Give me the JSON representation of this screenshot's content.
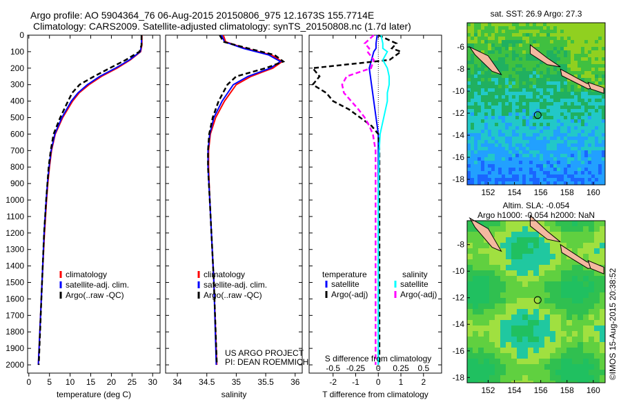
{
  "header": {
    "line1": "Argo profile: AO 5904364_76 06-Aug-2015 20150806_975 12.1673S 155.7714E",
    "line2": "Climatology: CARS2009. Satellite-adjusted climatology: synTS_20150808.nc (1.7d later)"
  },
  "chart_data": [
    {
      "type": "line",
      "xlabel": "temperature (deg C)",
      "ylabel": "",
      "xlim": [
        -0.3,
        31.8
      ],
      "ylim": [
        2050,
        0
      ],
      "xticks": [
        0,
        5,
        10,
        15,
        20,
        25,
        30
      ],
      "yticks": [
        0,
        100,
        200,
        300,
        400,
        500,
        600,
        700,
        800,
        900,
        1000,
        1100,
        1200,
        1300,
        1400,
        1500,
        1600,
        1700,
        1800,
        1900,
        2000
      ],
      "legend": [
        "climatology",
        "satellite-adj. clim.",
        "Argo(..raw -QC)"
      ],
      "depth": [
        0,
        60,
        100,
        150,
        200,
        250,
        300,
        350,
        400,
        500,
        600,
        700,
        800,
        900,
        1000,
        1200,
        1500,
        2000
      ],
      "series": [
        {
          "name": "climatology",
          "color": "#ff0000",
          "values": [
            27.4,
            27.4,
            27.1,
            24.6,
            21.4,
            17.6,
            14.6,
            12.2,
            10.6,
            8.2,
            6.4,
            5.5,
            5.0,
            4.6,
            4.3,
            3.8,
            3.2,
            2.3
          ]
        },
        {
          "name": "satellite-adj. clim.",
          "color": "#0000ff",
          "values": [
            27.3,
            27.3,
            27.0,
            24.4,
            21.0,
            17.2,
            14.2,
            11.9,
            10.3,
            8.0,
            6.3,
            5.4,
            4.9,
            4.5,
            4.2,
            3.7,
            3.2,
            2.3
          ]
        },
        {
          "name": "Argo(..raw -QC)",
          "color": "#000000",
          "dash": true,
          "values": [
            27.3,
            27.3,
            26.8,
            23.5,
            19.6,
            15.8,
            12.3,
            10.5,
            9.5,
            7.6,
            6.0,
            5.3,
            4.8,
            4.5,
            4.2,
            3.7,
            3.2,
            2.4
          ]
        }
      ]
    },
    {
      "type": "line",
      "xlabel": "salinity",
      "xlim": [
        33.8,
        36.12
      ],
      "ylim": [
        2050,
        0
      ],
      "xticks": [
        34,
        34.5,
        35,
        35.5,
        36
      ],
      "legend": [
        "climatology",
        "satellite-adj. clim.",
        "Argo(..raw -QC)"
      ],
      "annotation": [
        "US ARGO PROJECT",
        "PI: DEAN ROEMMICH"
      ],
      "depth": [
        0,
        40,
        80,
        120,
        160,
        200,
        250,
        300,
        400,
        500,
        600,
        700,
        800,
        1000,
        1500,
        2000
      ],
      "series": [
        {
          "name": "climatology",
          "color": "#ff0000",
          "values": [
            34.78,
            34.82,
            35.15,
            35.6,
            35.78,
            35.62,
            35.25,
            35.0,
            34.8,
            34.65,
            34.56,
            34.53,
            34.53,
            34.55,
            34.62,
            34.67
          ]
        },
        {
          "name": "satellite-adj. clim.",
          "color": "#0000ff",
          "values": [
            34.75,
            34.8,
            35.12,
            35.55,
            35.75,
            35.58,
            35.2,
            34.95,
            34.76,
            34.62,
            34.55,
            34.52,
            34.52,
            34.55,
            34.62,
            34.66
          ]
        },
        {
          "name": "Argo(..raw -QC)",
          "color": "#000000",
          "dash": true,
          "values": [
            34.72,
            34.78,
            35.2,
            35.65,
            35.8,
            35.5,
            35.0,
            34.85,
            34.7,
            34.6,
            34.54,
            34.52,
            34.52,
            34.55,
            34.62,
            34.67
          ]
        }
      ]
    },
    {
      "type": "line",
      "xlabel": "T difference from climatology",
      "x2label": "S difference from climatology",
      "xlim": [
        -3.06,
        2.8
      ],
      "ylim": [
        2050,
        0
      ],
      "xticks": [
        -2,
        -1,
        0,
        1,
        2
      ],
      "x2ticks": [
        "-0.5",
        "-0.25",
        "0",
        "0.25",
        "0.5"
      ],
      "x2values": [
        -0.5,
        -0.25,
        0,
        0.25,
        0.5
      ],
      "legend_headers": [
        "temperature",
        "salinity"
      ],
      "legend": [
        "satellite",
        "Argo(-adj)",
        "satellite",
        "Argo(-adj)"
      ],
      "depth": [
        0,
        50,
        80,
        100,
        150,
        200,
        250,
        300,
        350,
        400,
        450,
        500,
        550,
        600,
        700,
        1000,
        1500,
        2000
      ],
      "series": [
        {
          "name": "temperature satellite",
          "color": "#0000ff",
          "values": [
            -0.05,
            -0.1,
            -0.1,
            -0.2,
            -0.3,
            -0.4,
            -0.35,
            -0.3,
            -0.25,
            -0.2,
            -0.15,
            -0.1,
            -0.05,
            0,
            0,
            0,
            0,
            0
          ]
        },
        {
          "name": "temperature Argo(-adj)",
          "color": "#000000",
          "dash": true,
          "values": [
            0,
            0.8,
            0.6,
            1.0,
            0.5,
            -2.9,
            -2.6,
            -2.9,
            -2.3,
            -2.0,
            -1.3,
            -0.8,
            -0.3,
            0,
            0.05,
            0.05,
            0.05,
            0.05
          ]
        },
        {
          "name": "salinity satellite",
          "color": "#00ffff",
          "values": [
            0.03,
            0.05,
            0.05,
            0.1,
            0.05,
            0.1,
            0.12,
            0.12,
            0.1,
            0.1,
            0.08,
            0.06,
            0.04,
            0.02,
            0.01,
            0.0,
            0.0,
            0.0
          ]
        },
        {
          "name": "salinity Argo(-adj)",
          "color": "#ff00ff",
          "dash": true,
          "values": [
            -0.05,
            -0.15,
            -0.1,
            -0.12,
            -0.05,
            -0.08,
            -0.35,
            -0.4,
            -0.38,
            -0.3,
            -0.22,
            -0.15,
            -0.1,
            -0.06,
            -0.03,
            -0.03,
            -0.03,
            -0.03
          ]
        }
      ]
    },
    {
      "type": "heatmap",
      "title": "sat. SST: 26.9 Argo: 27.3",
      "xticks": [
        152,
        154,
        156,
        158,
        160
      ],
      "yticks": [
        -6,
        -8,
        -10,
        -12,
        -14,
        -16,
        -18
      ],
      "xlim": [
        150.4,
        160.9
      ],
      "ylim": [
        -18.5,
        -3.8
      ],
      "argo_position": [
        155.77,
        -12.17
      ]
    },
    {
      "type": "heatmap",
      "title": [
        "Altim. SLA: -0.054",
        "Argo h1000: -0.054 h2000: NaN"
      ],
      "xticks": [
        152,
        154,
        156,
        158,
        160
      ],
      "yticks": [
        -8,
        -10,
        -12,
        -14,
        -16,
        -18
      ],
      "xlim": [
        150.4,
        160.9
      ],
      "ylim": [
        -18.4,
        -6.2
      ],
      "argo_position": [
        155.77,
        -12.17
      ]
    }
  ],
  "footer": {
    "credit": "©IMOS 15-Aug-2015 20:38:52"
  },
  "colors": {
    "land": "#f4b8a0",
    "ocean_sst": [
      "#1a66ff",
      "#22a0ff",
      "#22c8c8",
      "#20b060",
      "#40c040",
      "#90d020"
    ],
    "ocean_sla": [
      "#20c060",
      "#30c050",
      "#60d040",
      "#a0e040",
      "#20c8a0"
    ]
  }
}
